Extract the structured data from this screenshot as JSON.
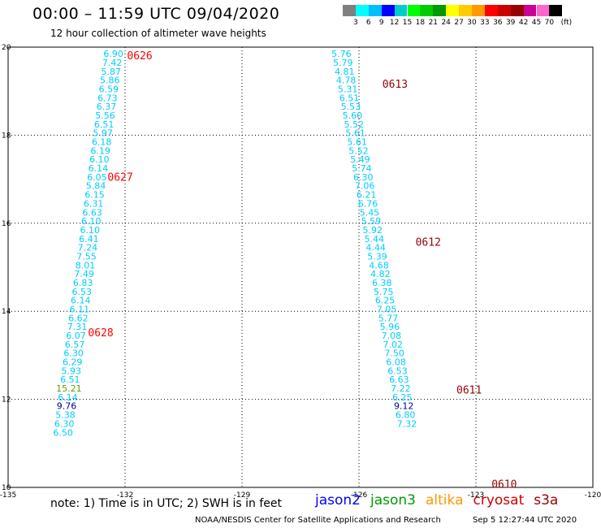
{
  "title": "00:00 – 11:59 UTC 09/04/2020",
  "subtitle": "12 hour collection of altimeter wave heights",
  "colorbar": {
    "unit": "(ft)",
    "colors": [
      "#808080",
      "#00ffff",
      "#00bfff",
      "#0000ff",
      "#00cccc",
      "#00ff00",
      "#00cc00",
      "#009900",
      "#ffff00",
      "#ffcc00",
      "#ff9900",
      "#ff0000",
      "#cc0000",
      "#990000",
      "#cc0099",
      "#ff66cc",
      "#000000"
    ],
    "labels": [
      "3",
      "6",
      "9",
      "12",
      "15",
      "18",
      "21",
      "24",
      "27",
      "30",
      "33",
      "36",
      "39",
      "42",
      "45",
      "70"
    ]
  },
  "map": {
    "lon_range": [
      -135,
      -120
    ],
    "lat_range": [
      10,
      20
    ],
    "lon_ticks": [
      "-135",
      "-132",
      "-129",
      "-126",
      "-123",
      "-120"
    ],
    "lat_ticks": [
      "20",
      "18",
      "16",
      "14",
      "12",
      "10"
    ],
    "grid": "dotted"
  },
  "tracks": [
    {
      "id": "west",
      "labels": [
        {
          "text": "0626",
          "lon": -131.95,
          "lat": 19.82,
          "color": "#ff0000"
        },
        {
          "text": "0627",
          "lon": -132.45,
          "lat": 17.06,
          "color": "#ff0000"
        },
        {
          "text": "0628",
          "lon": -132.95,
          "lat": 13.52,
          "color": "#ff0000"
        }
      ],
      "readings": [
        {
          "v": "6.90",
          "lon": -132.3,
          "lat": 19.85,
          "c": "#00ccff"
        },
        {
          "v": "7.42",
          "lon": -132.33,
          "lat": 19.65,
          "c": "#00ccff"
        },
        {
          "v": "5.87",
          "lon": -132.36,
          "lat": 19.45,
          "c": "#00ccff"
        },
        {
          "v": "5.86",
          "lon": -132.39,
          "lat": 19.25,
          "c": "#00ccff"
        },
        {
          "v": "6.59",
          "lon": -132.42,
          "lat": 19.05,
          "c": "#00ccff"
        },
        {
          "v": "6.73",
          "lon": -132.45,
          "lat": 18.85,
          "c": "#00ccff"
        },
        {
          "v": "6.37",
          "lon": -132.48,
          "lat": 18.65,
          "c": "#00ccff"
        },
        {
          "v": "5.56",
          "lon": -132.51,
          "lat": 18.45,
          "c": "#00ccff"
        },
        {
          "v": "6.51",
          "lon": -132.54,
          "lat": 18.25,
          "c": "#00ccff"
        },
        {
          "v": "5.97",
          "lon": -132.57,
          "lat": 18.05,
          "c": "#00ccff"
        },
        {
          "v": "6.18",
          "lon": -132.6,
          "lat": 17.85,
          "c": "#00ccff"
        },
        {
          "v": "6.19",
          "lon": -132.63,
          "lat": 17.65,
          "c": "#00ccff"
        },
        {
          "v": "6.10",
          "lon": -132.66,
          "lat": 17.45,
          "c": "#00ccff"
        },
        {
          "v": "6.14",
          "lon": -132.69,
          "lat": 17.25,
          "c": "#00ccff"
        },
        {
          "v": "6.05",
          "lon": -132.72,
          "lat": 17.05,
          "c": "#00ccff"
        },
        {
          "v": "5.84",
          "lon": -132.75,
          "lat": 16.85,
          "c": "#00ccff"
        },
        {
          "v": "6.15",
          "lon": -132.78,
          "lat": 16.65,
          "c": "#00ccff"
        },
        {
          "v": "6.31",
          "lon": -132.81,
          "lat": 16.45,
          "c": "#00ccff"
        },
        {
          "v": "6.63",
          "lon": -132.84,
          "lat": 16.25,
          "c": "#00ccff"
        },
        {
          "v": "6.10",
          "lon": -132.87,
          "lat": 16.05,
          "c": "#00ccff"
        },
        {
          "v": "6.10",
          "lon": -132.9,
          "lat": 15.85,
          "c": "#00ccff"
        },
        {
          "v": "6.41",
          "lon": -132.93,
          "lat": 15.65,
          "c": "#00ccff"
        },
        {
          "v": "7.24",
          "lon": -132.96,
          "lat": 15.45,
          "c": "#00ccff"
        },
        {
          "v": "7.55",
          "lon": -132.99,
          "lat": 15.25,
          "c": "#00ccff"
        },
        {
          "v": "8.01",
          "lon": -133.02,
          "lat": 15.05,
          "c": "#00ccff"
        },
        {
          "v": "7.49",
          "lon": -133.05,
          "lat": 14.85,
          "c": "#00ccff"
        },
        {
          "v": "6.83",
          "lon": -133.08,
          "lat": 14.65,
          "c": "#00ccff"
        },
        {
          "v": "6.53",
          "lon": -133.11,
          "lat": 14.45,
          "c": "#00ccff"
        },
        {
          "v": "6.14",
          "lon": -133.14,
          "lat": 14.25,
          "c": "#00ccff"
        },
        {
          "v": "6.11",
          "lon": -133.17,
          "lat": 14.05,
          "c": "#00ccff"
        },
        {
          "v": "6.62",
          "lon": -133.2,
          "lat": 13.85,
          "c": "#00ccff"
        },
        {
          "v": "7.31",
          "lon": -133.23,
          "lat": 13.65,
          "c": "#00ccff"
        },
        {
          "v": "6.07",
          "lon": -133.26,
          "lat": 13.45,
          "c": "#00ccff"
        },
        {
          "v": "6.57",
          "lon": -133.29,
          "lat": 13.25,
          "c": "#00ccff"
        },
        {
          "v": "6.30",
          "lon": -133.32,
          "lat": 13.05,
          "c": "#00ccff"
        },
        {
          "v": "6.29",
          "lon": -133.35,
          "lat": 12.85,
          "c": "#00ccff"
        },
        {
          "v": "5.93",
          "lon": -133.38,
          "lat": 12.65,
          "c": "#00ccff"
        },
        {
          "v": "6.51",
          "lon": -133.41,
          "lat": 12.45,
          "c": "#00ccff"
        },
        {
          "v": "15.21",
          "lon": -133.44,
          "lat": 12.25,
          "c": "#669900"
        },
        {
          "v": "6.14",
          "lon": -133.47,
          "lat": 12.05,
          "c": "#00ccff"
        },
        {
          "v": "9.76",
          "lon": -133.5,
          "lat": 11.85,
          "c": "#000099"
        },
        {
          "v": "5.38",
          "lon": -133.53,
          "lat": 11.65,
          "c": "#00ccff"
        },
        {
          "v": "6.30",
          "lon": -133.56,
          "lat": 11.45,
          "c": "#00ccff"
        },
        {
          "v": "6.50",
          "lon": -133.59,
          "lat": 11.25,
          "c": "#00ccff"
        }
      ]
    },
    {
      "id": "east",
      "labels": [
        {
          "text": "0613",
          "lon": -125.4,
          "lat": 19.17,
          "color": "#990000"
        },
        {
          "text": "0612",
          "lon": -124.55,
          "lat": 15.58,
          "color": "#990000"
        },
        {
          "text": "0611",
          "lon": -123.5,
          "lat": 12.22,
          "color": "#990000"
        },
        {
          "text": "0610",
          "lon": -122.6,
          "lat": 10.08,
          "color": "#990000"
        }
      ],
      "readings": [
        {
          "v": "5.76",
          "lon": -126.45,
          "lat": 19.85,
          "c": "#00ccff"
        },
        {
          "v": "5.79",
          "lon": -126.41,
          "lat": 19.65,
          "c": "#00ccff"
        },
        {
          "v": "4.81",
          "lon": -126.37,
          "lat": 19.45,
          "c": "#00ccff"
        },
        {
          "v": "4.78",
          "lon": -126.33,
          "lat": 19.25,
          "c": "#00ccff"
        },
        {
          "v": "5.31",
          "lon": -126.29,
          "lat": 19.05,
          "c": "#00ccff"
        },
        {
          "v": "6.51",
          "lon": -126.25,
          "lat": 18.85,
          "c": "#00ccff"
        },
        {
          "v": "5.53",
          "lon": -126.21,
          "lat": 18.65,
          "c": "#00ccff"
        },
        {
          "v": "5.60",
          "lon": -126.17,
          "lat": 18.45,
          "c": "#00ccff"
        },
        {
          "v": "5.52",
          "lon": -126.13,
          "lat": 18.25,
          "c": "#00ccff"
        },
        {
          "v": "5.61",
          "lon": -126.09,
          "lat": 18.05,
          "c": "#00ccff"
        },
        {
          "v": "5.61",
          "lon": -126.05,
          "lat": 17.85,
          "c": "#00ccff"
        },
        {
          "v": "5.52",
          "lon": -126.01,
          "lat": 17.65,
          "c": "#00ccff"
        },
        {
          "v": "5.49",
          "lon": -125.97,
          "lat": 17.45,
          "c": "#00ccff"
        },
        {
          "v": "5.74",
          "lon": -125.93,
          "lat": 17.25,
          "c": "#00ccff"
        },
        {
          "v": "6.30",
          "lon": -125.89,
          "lat": 17.05,
          "c": "#00ccff"
        },
        {
          "v": "7.06",
          "lon": -125.85,
          "lat": 16.85,
          "c": "#00ccff"
        },
        {
          "v": "6.21",
          "lon": -125.81,
          "lat": 16.65,
          "c": "#00ccff"
        },
        {
          "v": "6.76",
          "lon": -125.77,
          "lat": 16.45,
          "c": "#00ccff"
        },
        {
          "v": "5.45",
          "lon": -125.73,
          "lat": 16.25,
          "c": "#00ccff"
        },
        {
          "v": "5.59",
          "lon": -125.69,
          "lat": 16.05,
          "c": "#00ccff"
        },
        {
          "v": "5.92",
          "lon": -125.65,
          "lat": 15.85,
          "c": "#00ccff"
        },
        {
          "v": "5.44",
          "lon": -125.61,
          "lat": 15.65,
          "c": "#00ccff"
        },
        {
          "v": "4.44",
          "lon": -125.57,
          "lat": 15.45,
          "c": "#00ccff"
        },
        {
          "v": "5.39",
          "lon": -125.53,
          "lat": 15.25,
          "c": "#00ccff"
        },
        {
          "v": "4.68",
          "lon": -125.49,
          "lat": 15.05,
          "c": "#00ccff"
        },
        {
          "v": "4.82",
          "lon": -125.45,
          "lat": 14.85,
          "c": "#00ccff"
        },
        {
          "v": "6.38",
          "lon": -125.41,
          "lat": 14.65,
          "c": "#00ccff"
        },
        {
          "v": "5.75",
          "lon": -125.37,
          "lat": 14.45,
          "c": "#00ccff"
        },
        {
          "v": "6.25",
          "lon": -125.33,
          "lat": 14.25,
          "c": "#00ccff"
        },
        {
          "v": "7.05",
          "lon": -125.29,
          "lat": 14.05,
          "c": "#00ccff"
        },
        {
          "v": "5.77",
          "lon": -125.25,
          "lat": 13.85,
          "c": "#00ccff"
        },
        {
          "v": "5.96",
          "lon": -125.21,
          "lat": 13.65,
          "c": "#00ccff"
        },
        {
          "v": "7.08",
          "lon": -125.17,
          "lat": 13.45,
          "c": "#00ccff"
        },
        {
          "v": "7.02",
          "lon": -125.13,
          "lat": 13.25,
          "c": "#00ccff"
        },
        {
          "v": "7.50",
          "lon": -125.09,
          "lat": 13.05,
          "c": "#00ccff"
        },
        {
          "v": "6.08",
          "lon": -125.05,
          "lat": 12.85,
          "c": "#00ccff"
        },
        {
          "v": "6.53",
          "lon": -125.01,
          "lat": 12.65,
          "c": "#00ccff"
        },
        {
          "v": "6.63",
          "lon": -124.97,
          "lat": 12.45,
          "c": "#00ccff"
        },
        {
          "v": "7.22",
          "lon": -124.93,
          "lat": 12.25,
          "c": "#00ccff"
        },
        {
          "v": "6.25",
          "lon": -124.89,
          "lat": 12.05,
          "c": "#00ccff"
        },
        {
          "v": "9.12",
          "lon": -124.85,
          "lat": 11.85,
          "c": "#000099"
        },
        {
          "v": "6.80",
          "lon": -124.81,
          "lat": 11.65,
          "c": "#00ccff"
        },
        {
          "v": "7.32",
          "lon": -124.77,
          "lat": 11.45,
          "c": "#00ccff"
        }
      ]
    }
  ],
  "note": "note:  1) Time is in UTC;  2) SWH is in feet",
  "satellites": [
    {
      "name": "jason2",
      "color": "#0000ff"
    },
    {
      "name": "jason3",
      "color": "#009900"
    },
    {
      "name": "altika",
      "color": "#ff9900"
    },
    {
      "name": "cryosat",
      "color": "#cc0000"
    },
    {
      "name": "s3a",
      "color": "#990000"
    }
  ],
  "credit": "NOAA/NESDIS Center for Satellite Applications and Research",
  "generated": "Sep  5 12:27:44 UTC 2020"
}
